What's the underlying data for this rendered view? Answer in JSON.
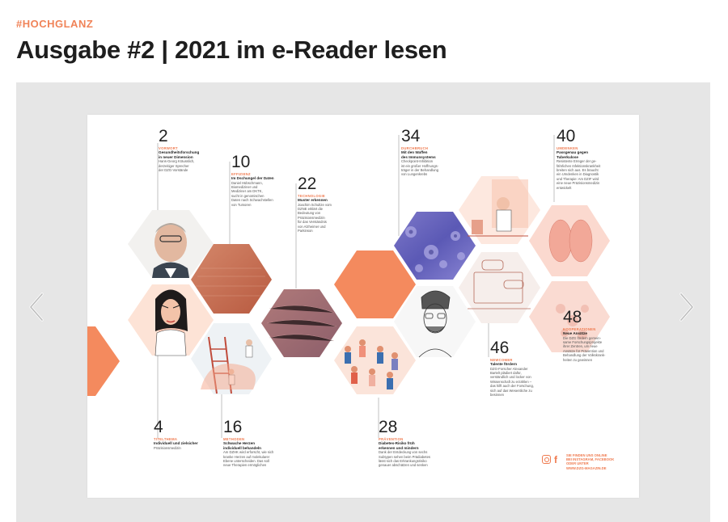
{
  "header": {
    "kicker": "#HOCHGLANZ",
    "title": "Ausgabe #2 | 2021 im e-Reader lesen"
  },
  "viewer": {
    "prev_icon": "chevron-left-icon",
    "next_icon": "chevron-right-icon"
  },
  "spread": {
    "entries": [
      {
        "num": "2",
        "cat": "VORWORT",
        "head": "Gesundheitsforschung\nin neuer Dimension",
        "body": "Hans-Georg Kräusslich,\nderzeitiger Sprecher\nder DZG-Vorstände"
      },
      {
        "num": "10",
        "cat": "EFFIZIENZ",
        "head": "Im Dschungel der Daten",
        "body": "Daniel Hübschmann,\nBiomediziner und\nMediziner am DKTK,\nsucht in genomischen\nDaten nach Schwachstellen\nvon Tumoren"
      },
      {
        "num": "22",
        "cat": "TECHNOLOGIE",
        "head": "Muster erkennen",
        "body": "Joachim Schultze vom\nDZNE erklärt die\nBedeutung von\nPräzisionsmedizin\nfür das Verständnis\nvon Alzheimer und\nParkinson"
      },
      {
        "num": "34",
        "cat": "DURCHBRUCH",
        "head": "Mit den Waffen\ndes Immunsystems",
        "body": "Checkpoint-Inhibition\nist ein großer Hoffnungs-\nträger in der Behandlung\nvon Lungenkrebs"
      },
      {
        "num": "40",
        "cat": "UMDENKEN",
        "head": "Passgenau gegen\nTuberkulose",
        "body": "Resistente Erreger der ge-\nfährlichen Infektionskrankheit\nbreiten sich aus. Es braucht\nein Umdenken in Diagnostik\nund Therapie: Am DZIF wird\neine neue Präzisionsmedizin\nentwickelt"
      },
      {
        "num": "4",
        "cat": "TITELTHEMA",
        "head": "Individuell und zielsicher",
        "body": "Präzisionsmedizin"
      },
      {
        "num": "16",
        "cat": "METHODEN",
        "head": "Schwache Herzen\nindividuell behandeln",
        "body": "Am DZHK wird erforscht, wie sich\nkranke Herzen auf molekularer\nEbene unterscheiden. Das soll\nneue Therapien ermöglichen"
      },
      {
        "num": "28",
        "cat": "PRÄVENTION",
        "head": "Diabetes-Risiko früh\nerkennen und mindern",
        "body": "Dank der Entdeckung von sechs\nSubtypen sehen beim Prädiabetes\nlässt sich das Erkrankungsrisiko\ngenauer abschätzen und senken"
      },
      {
        "num": "46",
        "cat": "NEWCOMER",
        "head": "Talente fördern",
        "body": "DZG-Forscher Alexander\nBartelt plädiert dafür,\nverständlich und locker von\nWissenschaft zu erzählen –\ndas hilft auch der Forschung,\nsich auf das Wesentliche zu\nbesinnen"
      },
      {
        "num": "48",
        "cat": "KOOPERATIONEN",
        "head": "Neue Ansätze",
        "body": "Die DZG fördern gemein-\nsame Forschungsprojekte\nihrer Zentren, um neue\nAnsätze für Prävention und\nBehandlung der Volkskrank-\nheiten zu gewinnen"
      }
    ],
    "footer_note": "SIE FINDEN UNS ONLINE\nBEI INSTAGRAM, FACEBOOK\nODER UNTER\nWWW.DZG-MAGAZIN.DE",
    "social_icons": [
      "instagram-icon",
      "facebook-icon"
    ],
    "accent_color": "#ef7a4f"
  }
}
